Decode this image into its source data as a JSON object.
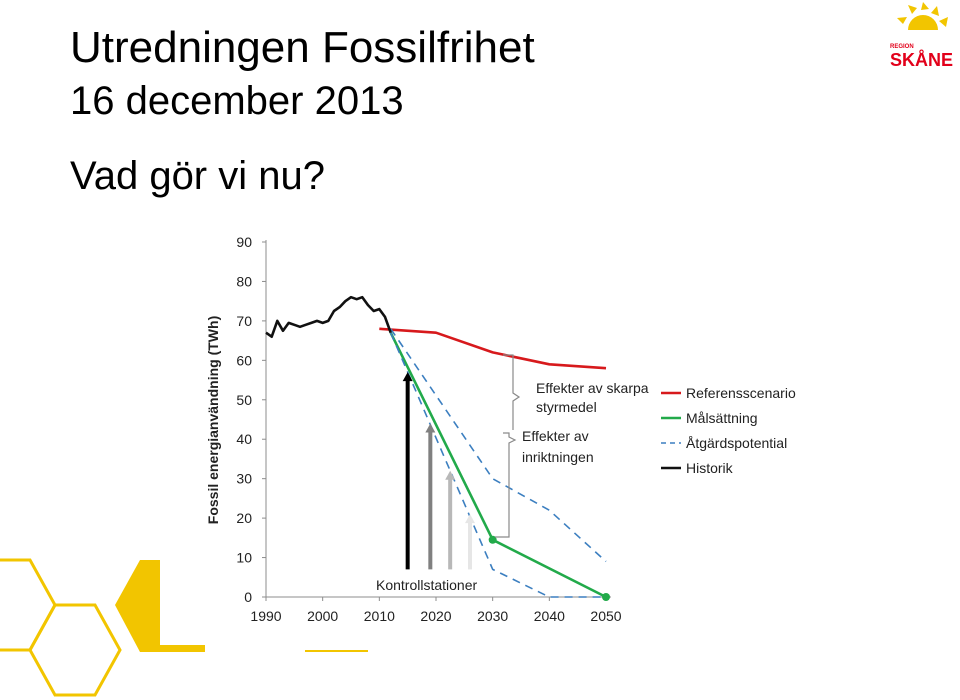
{
  "slide": {
    "title_line1": "Utredningen Fossilfrihet",
    "title_line2": "16 december 2013",
    "subtitle": "Vad gör vi nu?"
  },
  "logo": {
    "small_text": "REGION",
    "name": "SKÅNE",
    "colors": {
      "sun": "#F2C500",
      "text": "#E2001A"
    }
  },
  "chart_data": {
    "type": "line",
    "ylabel": "Fossil energianvändning (TWh)",
    "xlabel": "",
    "xlim": [
      1990,
      2050
    ],
    "ylim": [
      0,
      90
    ],
    "x_ticks": [
      1990,
      2000,
      2010,
      2020,
      2030,
      2040,
      2050
    ],
    "y_ticks": [
      0,
      10,
      20,
      30,
      40,
      50,
      60,
      70,
      80,
      90
    ],
    "grid": false,
    "legend_position": "right",
    "series": [
      {
        "name": "Referensscenario",
        "color": "#D7191C",
        "style": "solid",
        "points": [
          [
            2010,
            68
          ],
          [
            2020,
            67
          ],
          [
            2030,
            62
          ],
          [
            2040,
            59
          ],
          [
            2050,
            58
          ]
        ]
      },
      {
        "name": "Målsättning",
        "color": "#22AA4A",
        "style": "solid",
        "markers": true,
        "points": [
          [
            2012,
            67
          ],
          [
            2030,
            14.5
          ],
          [
            2050,
            0
          ]
        ]
      },
      {
        "name": "Åtgärdspotential",
        "color": "#3C7FC0",
        "style": "dashed",
        "points": [
          [
            2012,
            68
          ],
          [
            2030,
            30
          ],
          [
            2040,
            22
          ],
          [
            2050,
            9
          ]
        ]
      },
      {
        "name": "Åtgärdspotential",
        "color": "#3C7FC0",
        "style": "dashed",
        "points": [
          [
            2012,
            67
          ],
          [
            2030,
            7
          ],
          [
            2040,
            0
          ],
          [
            2050,
            0
          ]
        ]
      },
      {
        "name": "Historik",
        "color": "#111111",
        "style": "solid",
        "points": [
          [
            1990,
            67
          ],
          [
            1991,
            66
          ],
          [
            1992,
            70
          ],
          [
            1993,
            67.5
          ],
          [
            1994,
            69.5
          ],
          [
            1995,
            69
          ],
          [
            1996,
            68.5
          ],
          [
            1997,
            69
          ],
          [
            1998,
            69.5
          ],
          [
            1999,
            70
          ],
          [
            2000,
            69.5
          ],
          [
            2001,
            70
          ],
          [
            2002,
            72.5
          ],
          [
            2003,
            73.5
          ],
          [
            2004,
            75
          ],
          [
            2005,
            76
          ],
          [
            2006,
            75.5
          ],
          [
            2007,
            76
          ],
          [
            2008,
            74
          ],
          [
            2009,
            72.5
          ],
          [
            2010,
            73
          ],
          [
            2011,
            71
          ],
          [
            2012,
            67
          ]
        ]
      }
    ],
    "legend": [
      {
        "label": "Referensscenario",
        "color": "#D7191C",
        "style": "solid"
      },
      {
        "label": "Målsättning",
        "color": "#22AA4A",
        "style": "solid"
      },
      {
        "label": "Åtgärdspotential",
        "color": "#3C7FC0",
        "style": "dashed"
      },
      {
        "label": "Historik",
        "color": "#111111",
        "style": "solid"
      }
    ],
    "annotations": {
      "bracket_upper_line1": "Effekter av skarpa",
      "bracket_upper_line2": "styrmedel",
      "bracket_lower_line1": "Effekter av",
      "bracket_lower_line2": "inriktningen",
      "arrows_label": "Kontrollstationer"
    },
    "checkpoint_arrows": [
      {
        "x": 2015,
        "y_top": 57,
        "color": "#000000"
      },
      {
        "x": 2019,
        "y_top": 44,
        "color": "#808080"
      },
      {
        "x": 2022.5,
        "y_top": 32,
        "color": "#B8B8B8"
      },
      {
        "x": 2026,
        "y_top": 21,
        "color": "#E6E6E6"
      }
    ]
  }
}
